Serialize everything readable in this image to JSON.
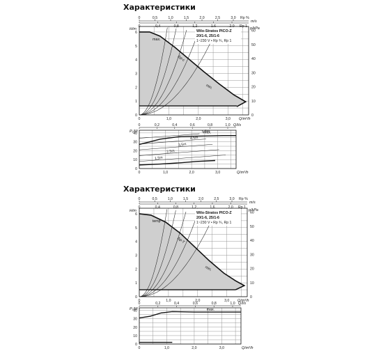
{
  "heading": "Характеристики",
  "charts": [
    {
      "title": "Характеристики",
      "legend": {
        "model": "Wilo-Stratos PICO-Z",
        "sizes": "20/1-6, 25/1-6",
        "supply": "1~230 V • Rp ¾, Rp 1"
      },
      "main": {
        "type": "line",
        "ylabel_left": "H/m",
        "ylabel_right": "p/kPa",
        "xlabel": "Q/m³/h",
        "x_ticks": [
          "0",
          "1,0",
          "2,0",
          "3,0"
        ],
        "y_ticks": [
          "0",
          "1",
          "2",
          "3",
          "4",
          "5",
          "6"
        ],
        "kpa_ticks": [
          "0",
          "10",
          "20",
          "30",
          "40",
          "50",
          "60"
        ],
        "top_axis1_unit": "Rp ¾",
        "top_axis1_ticks": [
          "0",
          "0,5",
          "1,0",
          "1,5",
          "2,0",
          "2,5",
          "3,0"
        ],
        "top_axis1_extra": "Rp %",
        "top_axis2_unit": "m/s",
        "top_axis2_ticks": [
          "0",
          "0,4",
          "0,8",
          "1,2",
          "1,6",
          "2,0"
        ],
        "top_axis2_extra": "Rp 1",
        "curve_labels": [
          "max.",
          "Δp-c",
          "min."
        ],
        "max_curve": {
          "x": [
            0,
            0.35,
            0.7,
            1.2,
            1.7,
            2.2,
            2.7,
            3.2,
            3.6,
            3.3
          ],
          "y": [
            6.0,
            6.0,
            5.7,
            4.9,
            4.0,
            3.1,
            2.25,
            1.45,
            0.95,
            0.6
          ]
        },
        "const_curve": {
          "x": [
            0,
            3.3
          ],
          "y": [
            0.65,
            0.65
          ]
        }
      },
      "power": {
        "type": "line",
        "ylabel": "P₁/W",
        "xlabel": "Q/m³/h",
        "x_ticks": [
          "0",
          "1,0",
          "2,0",
          "3,0"
        ],
        "y_ticks": [
          "0",
          "10",
          "20",
          "30",
          "40"
        ],
        "top_ticks": [
          "0",
          "0,2",
          "0,4",
          "0,6",
          "0,8",
          "1,0"
        ],
        "top_unit": "Q/l/s",
        "label_max": "max.",
        "series": [
          {
            "name": "max.",
            "x": [
              0,
              0.8,
              1.6,
              2.4,
              3.2,
              3.7
            ],
            "y": [
              27,
              33,
              36,
              36.5,
              37,
              37
            ]
          },
          {
            "name": "",
            "x": [
              0,
              0.8,
              1.6,
              2.2,
              2.9
            ],
            "y": [
              4,
              5,
              6.5,
              8,
              9
            ]
          }
        ],
        "head_lines": {
          "labels": [
            "1,5m",
            "2,5m",
            "3,5m",
            "4,5m",
            "5,5m"
          ]
        }
      }
    },
    {
      "title": "Характеристики",
      "legend": {
        "model": "Wilo-Stratos PICO-Z",
        "sizes": "20/1-6, 25/1-6",
        "supply": "1~230 V • Rp ¾, Rp 1"
      },
      "main": {
        "type": "line",
        "ylabel_left": "H/m",
        "ylabel_right": "p/kPa",
        "xlabel": "Q/m³/h",
        "x_ticks": [
          "0",
          "1,0",
          "2,0",
          "3,0"
        ],
        "y_ticks": [
          "0",
          "1",
          "2",
          "3",
          "4",
          "5",
          "6"
        ],
        "kpa_ticks": [
          "0",
          "10",
          "20",
          "30",
          "40",
          "50",
          "60"
        ],
        "top_axis1_unit": "Rp ¾",
        "top_axis1_ticks": [
          "0",
          "0,5",
          "1,0",
          "1,5",
          "2,0",
          "2,5",
          "3,0"
        ],
        "top_axis1_extra": "Rp %",
        "top_axis2_unit": "m/s",
        "top_axis2_ticks": [
          "0",
          "0,4",
          "0,8",
          "1,2",
          "1,6",
          "2,0"
        ],
        "top_axis2_extra": "Rp 1",
        "curve_labels": [
          "temp",
          "Δp-T",
          "min."
        ],
        "max_curve": {
          "x": [
            0,
            0.4,
            0.9,
            1.4,
            1.9,
            2.4,
            2.9,
            3.3,
            3.6,
            3.3
          ],
          "y": [
            6.0,
            5.9,
            5.4,
            4.6,
            3.6,
            2.6,
            1.7,
            1.15,
            0.8,
            0.5
          ]
        },
        "const_curve": {
          "x": [
            0,
            3.3
          ],
          "y": [
            0.5,
            0.5
          ]
        }
      },
      "power": {
        "type": "line",
        "ylabel": "P₁/W",
        "xlabel": "Q/m³/h",
        "x_ticks": [
          "0",
          "1,0",
          "2,0",
          "3,0"
        ],
        "y_ticks": [
          "0",
          "10",
          "20",
          "30",
          "40"
        ],
        "top_ticks": [
          "0",
          "0,2",
          "0,4",
          "0,6",
          "0,8",
          "1,0"
        ],
        "top_unit": "Q/l/s",
        "label_max": "max.",
        "series": [
          {
            "name": "max.",
            "x": [
              0,
              0.4,
              0.8,
              1.2,
              2.0,
              3.0,
              3.7
            ],
            "y": [
              31,
              33,
              37,
              38.5,
              38,
              38,
              38
            ]
          },
          {
            "name": "",
            "x": [
              0,
              1.2
            ],
            "y": [
              2,
              2
            ]
          }
        ]
      }
    }
  ]
}
